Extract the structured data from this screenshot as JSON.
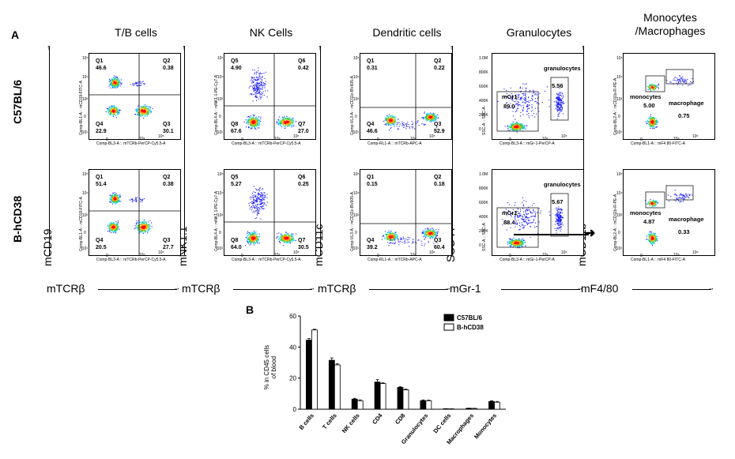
{
  "panel_a": {
    "letter": "A",
    "columns": [
      {
        "title": "T/B cells",
        "x_marker": "mTCRβ",
        "y_marker": "mCD19"
      },
      {
        "title": "NK Cells",
        "x_marker": "mTCRβ",
        "y_marker": "mNK1.1"
      },
      {
        "title": "Dendritic cells",
        "x_marker": "mTCRβ",
        "y_marker": "mCD11c"
      },
      {
        "title": "Granulocytes",
        "x_marker": "mGr-1",
        "y_marker": "SSC-A"
      },
      {
        "title": "Monocytes\n/Macrophages",
        "x_marker": "mF4/80",
        "y_marker": "mCD11b"
      }
    ],
    "rows": [
      "C57BL/6",
      "B-hCD38"
    ],
    "plots": [
      {
        "xlabel": "Comp-BL3-A :: mTCRb-PerCP-Cy5.5-A",
        "ylabel": "Comp-BL1-A :: mCD19-FITC-A",
        "quadrants": [
          {
            "row": 0,
            "q": [
              [
                "Q1",
                "46.6"
              ],
              [
                "Q2",
                "0.38"
              ],
              [
                "Q4",
                "22.9"
              ],
              [
                "Q3",
                "30.1"
              ]
            ]
          },
          {
            "row": 1,
            "q": [
              [
                "Q1",
                "51.4"
              ],
              [
                "Q2",
                "0.38"
              ],
              [
                "Q4",
                "20.5"
              ],
              [
                "Q3",
                "27.7"
              ]
            ]
          }
        ]
      },
      {
        "xlabel": "Comp-BL3-A :: mTCRb-PerCP-Cy5.5-A",
        "ylabel": "Comp-BL4-A :: mNK1.1-PE-Cy7-A",
        "quadrants": [
          {
            "row": 0,
            "q": [
              [
                "Q5",
                "4.90"
              ],
              [
                "Q6",
                "0.42"
              ],
              [
                "Q8",
                "67.6"
              ],
              [
                "Q7",
                "27.0"
              ]
            ]
          },
          {
            "row": 1,
            "q": [
              [
                "Q5",
                "5.27"
              ],
              [
                "Q6",
                "0.25"
              ],
              [
                "Q8",
                "64.0"
              ],
              [
                "Q7",
                "30.5"
              ]
            ]
          }
        ]
      },
      {
        "xlabel": "Comp-RL1-A :: mTCRb-APC-A",
        "ylabel": "Comp-VL3-A :: mCD11c-BV605-A",
        "quadrants": [
          {
            "row": 0,
            "q": [
              [
                "Q1",
                "0.31"
              ],
              [
                "Q2",
                "0.22"
              ],
              [
                "Q4",
                "46.6"
              ],
              [
                "Q3",
                "52.9"
              ]
            ]
          },
          {
            "row": 1,
            "q": [
              [
                "Q1",
                "0.15"
              ],
              [
                "Q2",
                "0.18"
              ],
              [
                "Q4",
                "39.2"
              ],
              [
                "Q3",
                "60.4"
              ]
            ]
          }
        ]
      },
      {
        "xlabel": "Comp-BL3-A :: mGr-1-PerCP-A",
        "ylabel": "SSC-A :: SSC-A",
        "gates": [
          {
            "row": 0,
            "g": [
              [
                "granulocytes",
                "5.56"
              ],
              [
                "mGr1-",
                "89.0"
              ]
            ]
          },
          {
            "row": 1,
            "g": [
              [
                "granulocytes",
                "5.67"
              ],
              [
                "mGr1-",
                "88.4"
              ]
            ]
          }
        ]
      },
      {
        "xlabel": "Comp-BL1-A :: mF4 80-FITC-A",
        "ylabel": "Comp-BL2-A :: mCD11b-R-PE-A",
        "gates": [
          {
            "row": 0,
            "g": [
              [
                "monocytes",
                "5.00"
              ],
              [
                "macrophage",
                "0.75"
              ]
            ]
          },
          {
            "row": 1,
            "g": [
              [
                "monocytes",
                "4.87"
              ],
              [
                "macrophage",
                "0.33"
              ]
            ]
          }
        ]
      }
    ],
    "tick_labels": {
      "zero": "0",
      "e4": "10⁴",
      "e5": "10⁵",
      "neg3": "-10³",
      "e3": "10³"
    },
    "ssc_ticks": [
      "1.0M",
      "800K",
      "600K",
      "400K",
      "200K",
      "0"
    ]
  },
  "chart_data": {
    "type": "bar",
    "panel_letter": "B",
    "categories": [
      "B cells",
      "T cells",
      "NK cells",
      "CD4",
      "CD8",
      "Granulocytes",
      "DC cells",
      "Macrophages",
      "Monocytes"
    ],
    "series": [
      {
        "name": "C57BL/6",
        "values": [
          44.5,
          31.5,
          6.5,
          17.5,
          14.0,
          5.5,
          0.3,
          0.6,
          5.0
        ],
        "errors": [
          1.0,
          1.5,
          0.5,
          1.5,
          0.5,
          0.5,
          0.1,
          0.1,
          0.5
        ],
        "color": "#000000"
      },
      {
        "name": "B-hCD38",
        "values": [
          51.0,
          28.5,
          5.5,
          16.5,
          12.5,
          5.5,
          0.2,
          0.5,
          4.5
        ],
        "errors": [
          0.5,
          0.8,
          0.5,
          0.5,
          0.5,
          0.4,
          0.1,
          0.1,
          0.5
        ],
        "color": "#ffffff"
      }
    ],
    "ylabel": "% in CD45 cells\nof blood",
    "ylim": [
      0,
      60
    ],
    "yticks": [
      0,
      20,
      40,
      60
    ],
    "legend": "top-right"
  }
}
